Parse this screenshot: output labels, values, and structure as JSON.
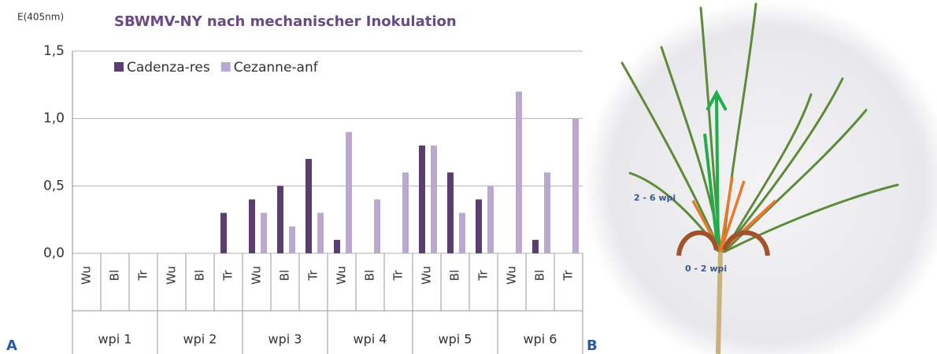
{
  "chart_data": {
    "type": "bar",
    "title": "SBWMV-NY nach mechanischer Inokulation",
    "y_label": "E(405nm)",
    "categories": [
      "Wu",
      "Bl",
      "Tr",
      "Wu",
      "Bl",
      "Tr",
      "Wu",
      "Bl",
      "Tr",
      "Wu",
      "Bl",
      "Tr",
      "Wu",
      "Bl",
      "Tr",
      "Wu",
      "Bl",
      "Tr"
    ],
    "groups": [
      "wpi 1",
      "wpi 2",
      "wpi 3",
      "wpi 4",
      "wpi 5",
      "wpi 6"
    ],
    "series": [
      {
        "name": "Cadenza-res",
        "color": "#5b3e6f",
        "values": [
          0,
          0,
          0,
          0,
          0,
          0.3,
          0.4,
          0.5,
          0.7,
          0.1,
          0,
          0,
          0.8,
          0.6,
          0.4,
          0,
          0.1,
          0
        ]
      },
      {
        "name": "Cezanne-anf",
        "color": "#bba8cf",
        "values": [
          0,
          0,
          0,
          0,
          0,
          0,
          0.3,
          0.2,
          0.3,
          0.9,
          0.4,
          0.6,
          0.8,
          0.3,
          0.5,
          1.2,
          0.6,
          1.0
        ]
      }
    ],
    "ylim": [
      0,
      1.5
    ],
    "yticks": [
      {
        "value": 0,
        "label": "0,0"
      },
      {
        "value": 0.5,
        "label": "0,5"
      },
      {
        "value": 1,
        "label": "1,0"
      },
      {
        "value": 1.5,
        "label": "1,5"
      }
    ],
    "grid": true,
    "panel_labels": [
      "A",
      "B"
    ],
    "photo_labels": [
      "2 - 6 wpi",
      "0 - 2 wpi"
    ]
  }
}
